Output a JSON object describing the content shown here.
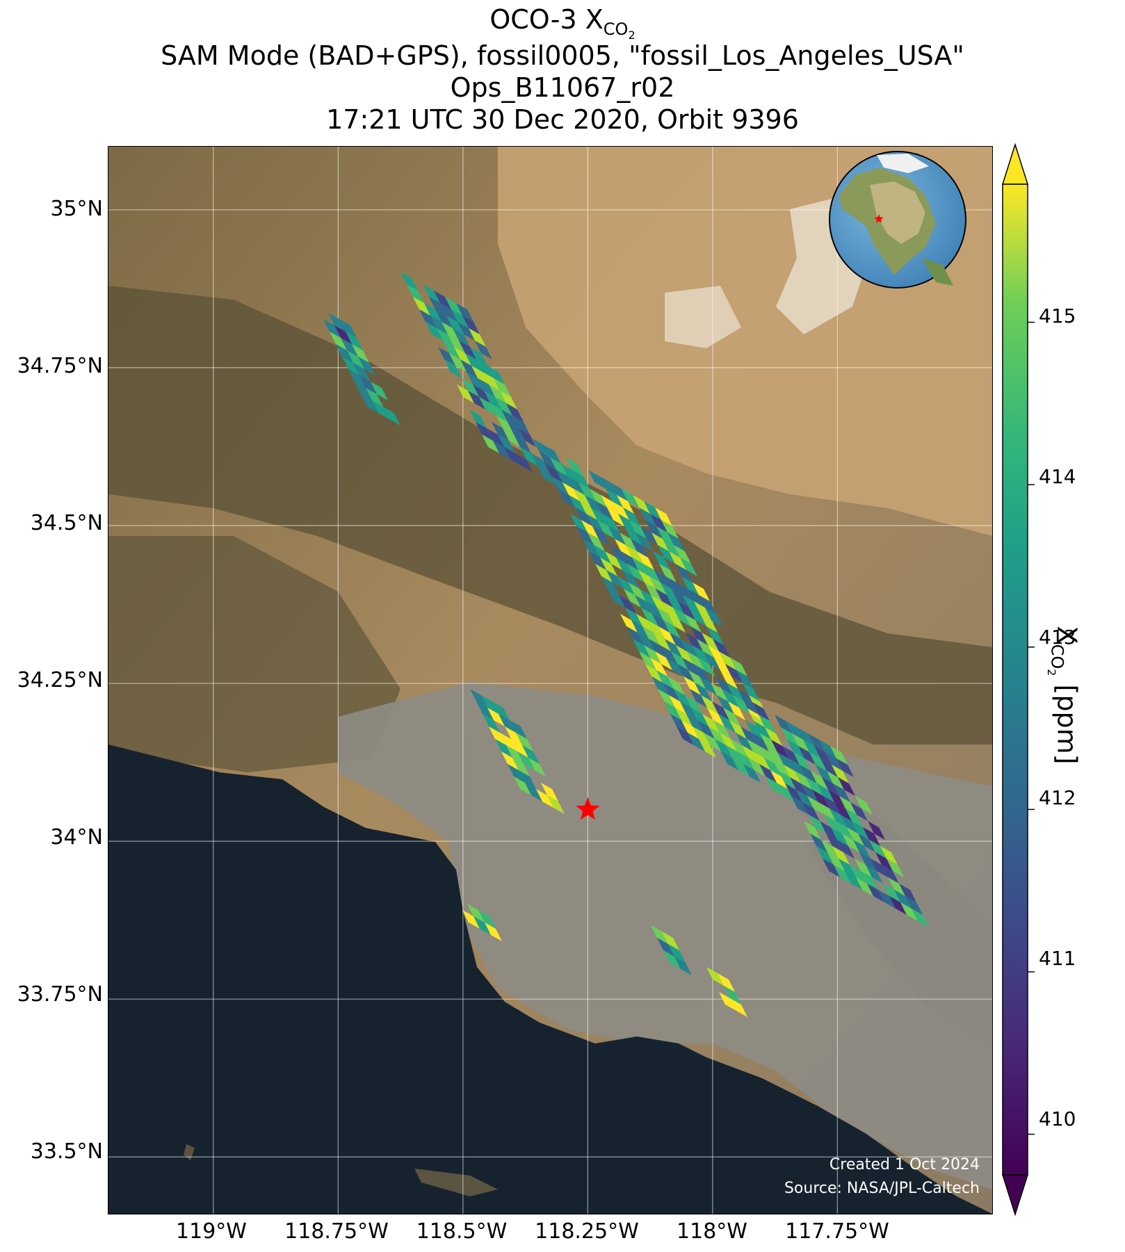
{
  "title": {
    "line1_prefix": "OCO-3 X",
    "line1_sub": "CO",
    "line1_sub2": "2",
    "line2": "SAM Mode (BAD+GPS), fossil0005, \"fossil_Los_Angeles_USA\"",
    "line3": "Ops_B11067_r02",
    "line4": "17:21 UTC 30 Dec 2020, Orbit 9396"
  },
  "axes": {
    "lat_ticks": [
      "35°N",
      "34.75°N",
      "34.5°N",
      "34.25°N",
      "34°N",
      "33.75°N",
      "33.5°N"
    ],
    "lon_ticks": [
      "119°W",
      "118.75°W",
      "118.5°W",
      "118.25°W",
      "118°W",
      "117.75°W"
    ],
    "lat_values": [
      35.0,
      34.75,
      34.5,
      34.25,
      34.0,
      33.75,
      33.5
    ],
    "lon_values": [
      -119.0,
      -118.75,
      -118.5,
      -118.25,
      -118.0,
      -117.75
    ],
    "lon_range": [
      -119.21,
      -117.44
    ],
    "lat_range": [
      33.41,
      35.1
    ]
  },
  "colorbar": {
    "label_prefix": "X",
    "label_sub": "CO",
    "label_sub2": "2",
    "label_suffix": " [ppm]",
    "ticks": [
      "410",
      "411",
      "412",
      "413",
      "414",
      "415"
    ],
    "tick_values": [
      410,
      411,
      412,
      413,
      414,
      415
    ],
    "range": [
      409.75,
      415.85
    ],
    "colormap": "viridis",
    "extend": "both"
  },
  "target": {
    "lon": -118.25,
    "lat": 34.05,
    "color": "#ff0000",
    "marker": "star"
  },
  "inset_globe": {
    "marker_color": "#ff0000",
    "marker": "star"
  },
  "credit": {
    "line1": "Created 1 Oct 2024",
    "line2": "Source: NASA/JPL-Caltech"
  }
}
